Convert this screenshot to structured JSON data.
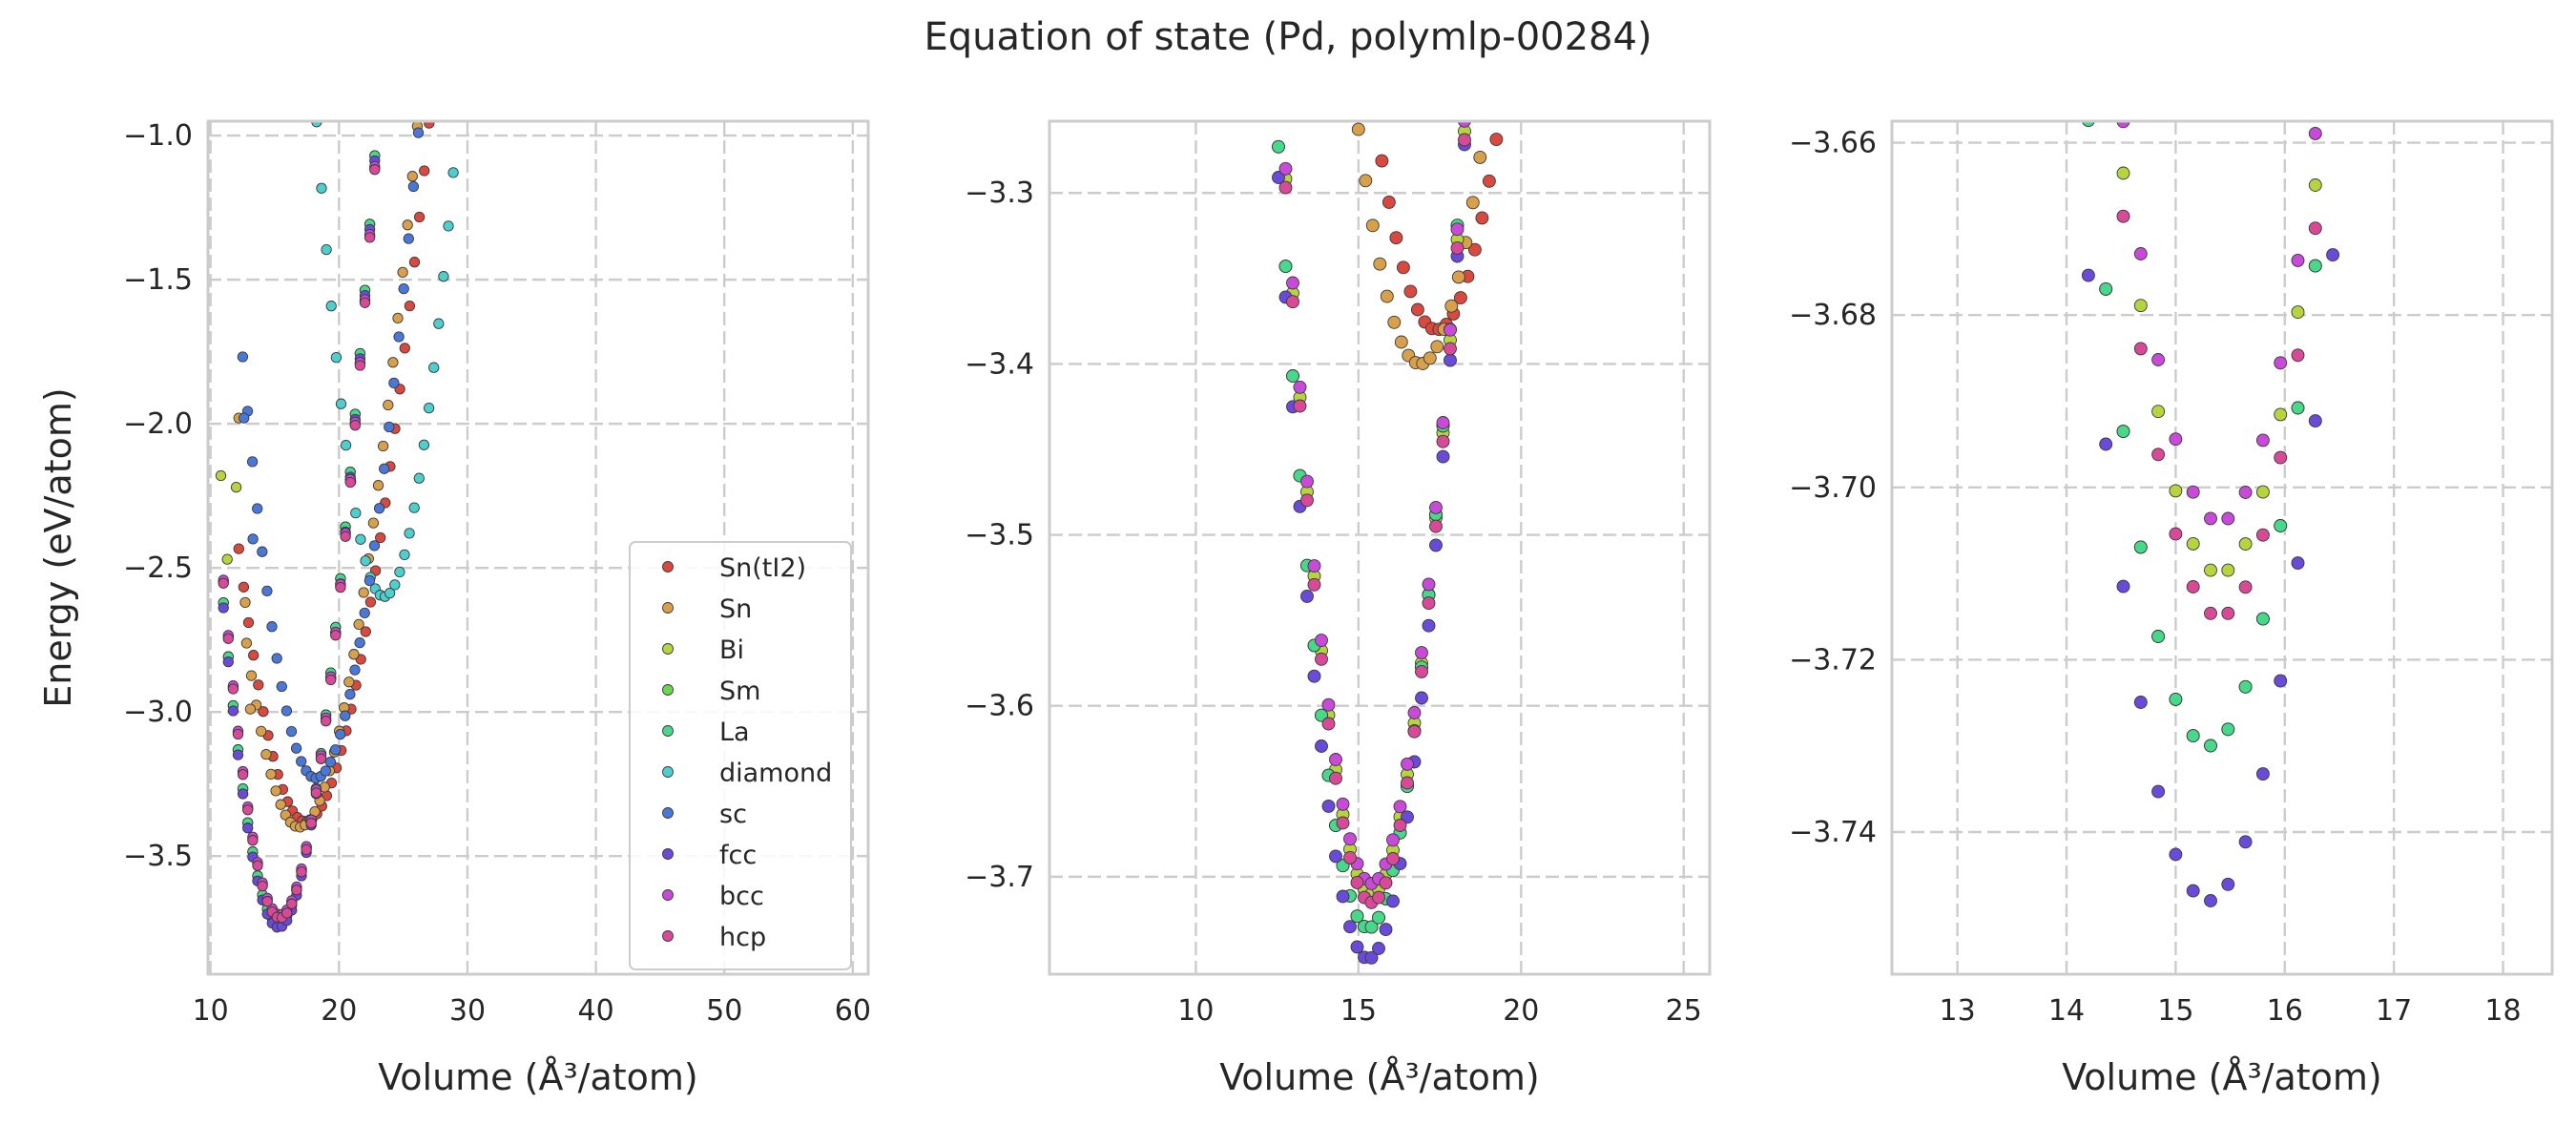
{
  "figure": {
    "title": "Equation of state (Pd, polymlp-00284)"
  },
  "legend": {
    "placement": "lower right of first panel",
    "entries": [
      {
        "name": "Sn(tI2)",
        "color": "#d9493f"
      },
      {
        "name": "Sn",
        "color": "#d8a04a"
      },
      {
        "name": "Bi",
        "color": "#b6d43e"
      },
      {
        "name": "Sm",
        "color": "#6ad84e"
      },
      {
        "name": "La",
        "color": "#48d88a"
      },
      {
        "name": "diamond",
        "color": "#4dcfcf"
      },
      {
        "name": "sc",
        "color": "#4a78d8"
      },
      {
        "name": "fcc",
        "color": "#6a4ad8"
      },
      {
        "name": "bcc",
        "color": "#c84ad8"
      },
      {
        "name": "hcp",
        "color": "#d84a98"
      }
    ]
  },
  "chart_data": [
    {
      "type": "scatter",
      "title": "",
      "xlabel": "Volume (Å³/atom)",
      "ylabel": "Energy (eV/atom)",
      "xlim": [
        9.8,
        61.2
      ],
      "ylim": [
        -3.91,
        -0.95
      ],
      "grid": true,
      "xticks": [
        10,
        20,
        30,
        40,
        50,
        60
      ],
      "yticks": [
        -3.5,
        -3.0,
        -2.5,
        -2.0,
        -1.5,
        -1.0
      ],
      "series": [
        {
          "name": "Sn(tI2)",
          "color": "#d9493f",
          "curve": {
            "e0": -3.38,
            "v0": 17.4,
            "b": 0.035,
            "vmin": 12.2,
            "vmax": 42.0
          },
          "points": []
        },
        {
          "name": "Sn",
          "color": "#d8a04a",
          "curve": {
            "e0": -3.4,
            "v0": 16.9,
            "b": 0.038,
            "vmin": 12.8,
            "vmax": 42.0
          },
          "points": [
            [
              12.2,
              -1.98
            ],
            [
              12.7,
              -2.62
            ],
            [
              13.1,
              -2.99
            ]
          ]
        },
        {
          "name": "Bi",
          "color": "#b6d43e",
          "curve": {
            "e0": -3.71,
            "v0": 15.4,
            "b": 0.06,
            "vmin": 11.0,
            "vmax": 38.0
          },
          "points": [
            [
              10.8,
              -2.18
            ],
            [
              11.3,
              -2.47
            ],
            [
              12.0,
              -2.22
            ]
          ]
        },
        {
          "name": "Sm",
          "color": "#6ad84e",
          "curve": {
            "e0": -3.73,
            "v0": 15.3,
            "b": 0.06,
            "vmin": 11.0,
            "vmax": 38.0
          },
          "points": []
        },
        {
          "name": "La",
          "color": "#48d88a",
          "curve": {
            "e0": -3.73,
            "v0": 15.3,
            "b": 0.06,
            "vmin": 11.0,
            "vmax": 38.0
          },
          "points": []
        },
        {
          "name": "diamond",
          "color": "#4dcfcf",
          "curve": {
            "e0": -2.6,
            "v0": 23.5,
            "b": 0.06,
            "vmin": 17.5,
            "vmax": 60.3
          },
          "points": []
        },
        {
          "name": "sc",
          "color": "#4a78d8",
          "curve": {
            "e0": -3.23,
            "v0": 18.2,
            "b": 0.045,
            "vmin": 12.5,
            "vmax": 44.2
          },
          "points": [
            [
              12.6,
              -1.98
            ],
            [
              13.3,
              -2.4
            ]
          ]
        },
        {
          "name": "fcc",
          "color": "#6a4ad8",
          "curve": {
            "e0": -3.748,
            "v0": 15.3,
            "b": 0.06,
            "vmin": 11.0,
            "vmax": 38.2
          },
          "points": []
        },
        {
          "name": "bcc",
          "color": "#c84ad8",
          "curve": {
            "e0": -3.704,
            "v0": 15.4,
            "b": 0.06,
            "vmin": 11.0,
            "vmax": 38.2
          },
          "points": []
        },
        {
          "name": "hcp",
          "color": "#d84a98",
          "curve": {
            "e0": -3.715,
            "v0": 15.4,
            "b": 0.06,
            "vmin": 11.0,
            "vmax": 38.2
          },
          "points": []
        }
      ]
    },
    {
      "type": "scatter",
      "title": "",
      "xlabel": "Volume (Å³/atom)",
      "ylabel": "",
      "xlim": [
        5.5,
        25.8
      ],
      "ylim": [
        -3.757,
        -3.258
      ],
      "grid": true,
      "xticks": [
        10,
        15,
        20,
        25
      ],
      "yticks": [
        -3.7,
        -3.6,
        -3.5,
        -3.4,
        -3.3
      ],
      "series_ref": "same as first panel (zoomed)"
    },
    {
      "type": "scatter",
      "title": "",
      "xlabel": "Volume (Å³/atom)",
      "ylabel": "",
      "xlim": [
        12.4,
        18.45
      ],
      "ylim": [
        -3.7565,
        -3.6575
      ],
      "grid": true,
      "xticks": [
        13,
        14,
        15,
        16,
        17,
        18
      ],
      "yticks": [
        -3.74,
        -3.72,
        -3.7,
        -3.68,
        -3.66
      ],
      "series_ref": "same as first panel (zoomed)"
    }
  ]
}
